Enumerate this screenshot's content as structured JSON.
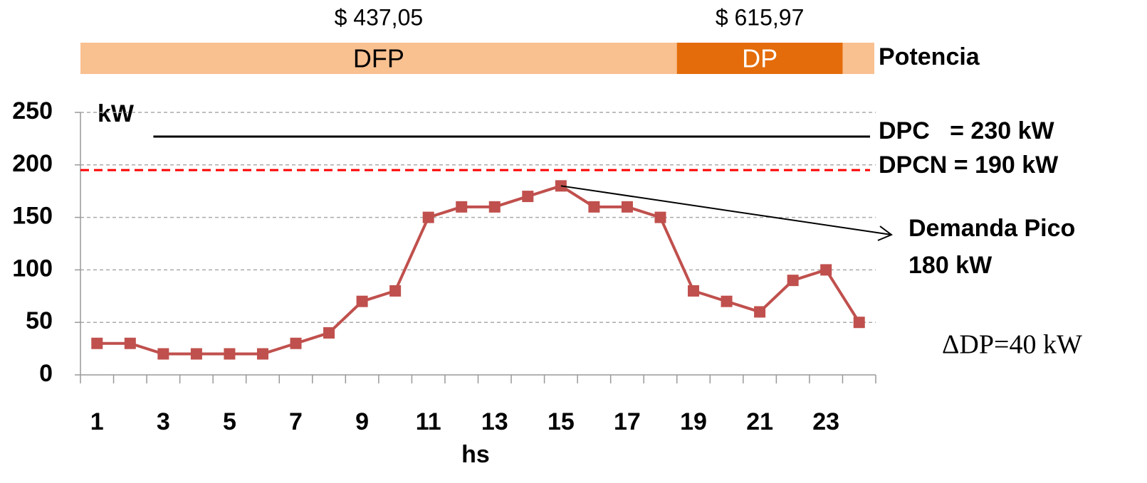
{
  "chart_data": {
    "type": "line",
    "y_unit": "kW",
    "x_label": "hs",
    "row_label": "Potencia",
    "x": [
      1,
      2,
      3,
      4,
      5,
      6,
      7,
      8,
      9,
      10,
      11,
      12,
      13,
      14,
      15,
      16,
      17,
      18,
      19,
      20,
      21,
      22,
      23,
      24
    ],
    "series": [
      {
        "color": "#c0504d",
        "values": [
          30,
          30,
          20,
          20,
          20,
          20,
          30,
          40,
          70,
          80,
          150,
          160,
          160,
          170,
          180,
          160,
          160,
          150,
          80,
          70,
          60,
          90,
          100,
          50
        ]
      }
    ],
    "xlim": [
      0.5,
      24.5
    ],
    "xticks": [
      1,
      3,
      5,
      7,
      9,
      11,
      13,
      15,
      17,
      19,
      21,
      23
    ],
    "ylim": [
      0,
      250
    ],
    "yticks": [
      0,
      50,
      100,
      150,
      200,
      250
    ],
    "grid": true,
    "bands": [
      {
        "name": "DFP",
        "cost": "$ 437,05",
        "start": 0.5,
        "end": 18.5,
        "color": "#f9c090"
      },
      {
        "name": "DP",
        "cost": "$ 615,97",
        "start": 18.5,
        "end": 23.5,
        "color": "#e46c0a"
      }
    ],
    "reference_lines": [
      {
        "label": "DPC   = 230 kW",
        "value": 227,
        "start": 2.7,
        "color": "#000000",
        "dashed": false
      },
      {
        "label": "DPCN = 190 kW",
        "value": 195,
        "start": 0.5,
        "color": "#ff0000",
        "dashed": true
      }
    ],
    "annotations": [
      {
        "lines": [
          "Demanda Pico",
          "180 kW"
        ],
        "point": 14
      },
      {
        "text": "ΔDP=40 kW"
      }
    ]
  }
}
